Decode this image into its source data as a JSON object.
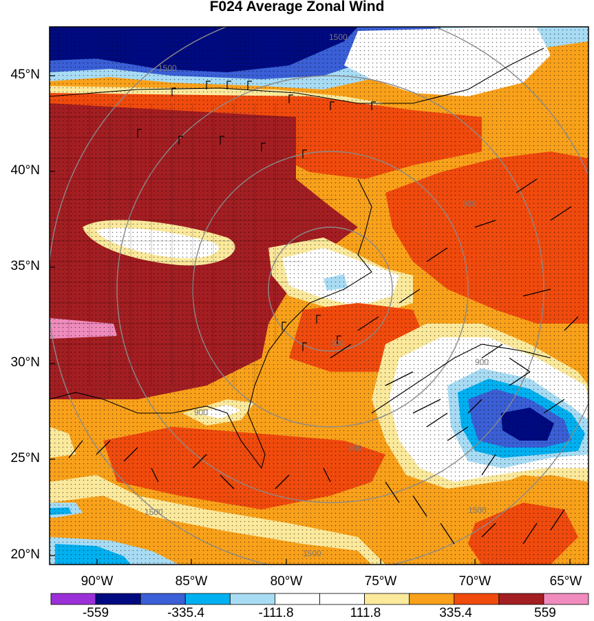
{
  "title": "F024 Average Zonal Wind",
  "lat_labels": [
    "45°N",
    "40°N",
    "35°N",
    "30°N",
    "25°N",
    "20°N"
  ],
  "lon_labels": [
    "90°W",
    "85°W",
    "80°W",
    "75°W",
    "70°W",
    "65°W"
  ],
  "contour_labels": [
    "1500",
    "1500",
    "900",
    "300",
    "900",
    "900",
    "900",
    "1500",
    "1500",
    "1500"
  ],
  "colorbar": {
    "labels": [
      "-559",
      "-335.4",
      "-111.8",
      "111.8",
      "335.4",
      "559"
    ],
    "colors": [
      "#9b30d8",
      "#000a80",
      "#3a5fd6",
      "#00b0f0",
      "#a8dcf4",
      "#ffffff",
      "#ffffff",
      "#fbe99c",
      "#f9a11a",
      "#f04a0d",
      "#a31e22",
      "#f08bbe"
    ]
  },
  "palette": {
    "dark_red": "#a31e22",
    "red_orange": "#f04a0d",
    "orange": "#f9a11a",
    "pale_yellow": "#fbe99c",
    "white": "#ffffff",
    "light_blue": "#a8dcf4",
    "sky_blue": "#00b0f0",
    "blue": "#3a5fd6",
    "navy": "#000a80",
    "pink": "#f08bbe"
  }
}
